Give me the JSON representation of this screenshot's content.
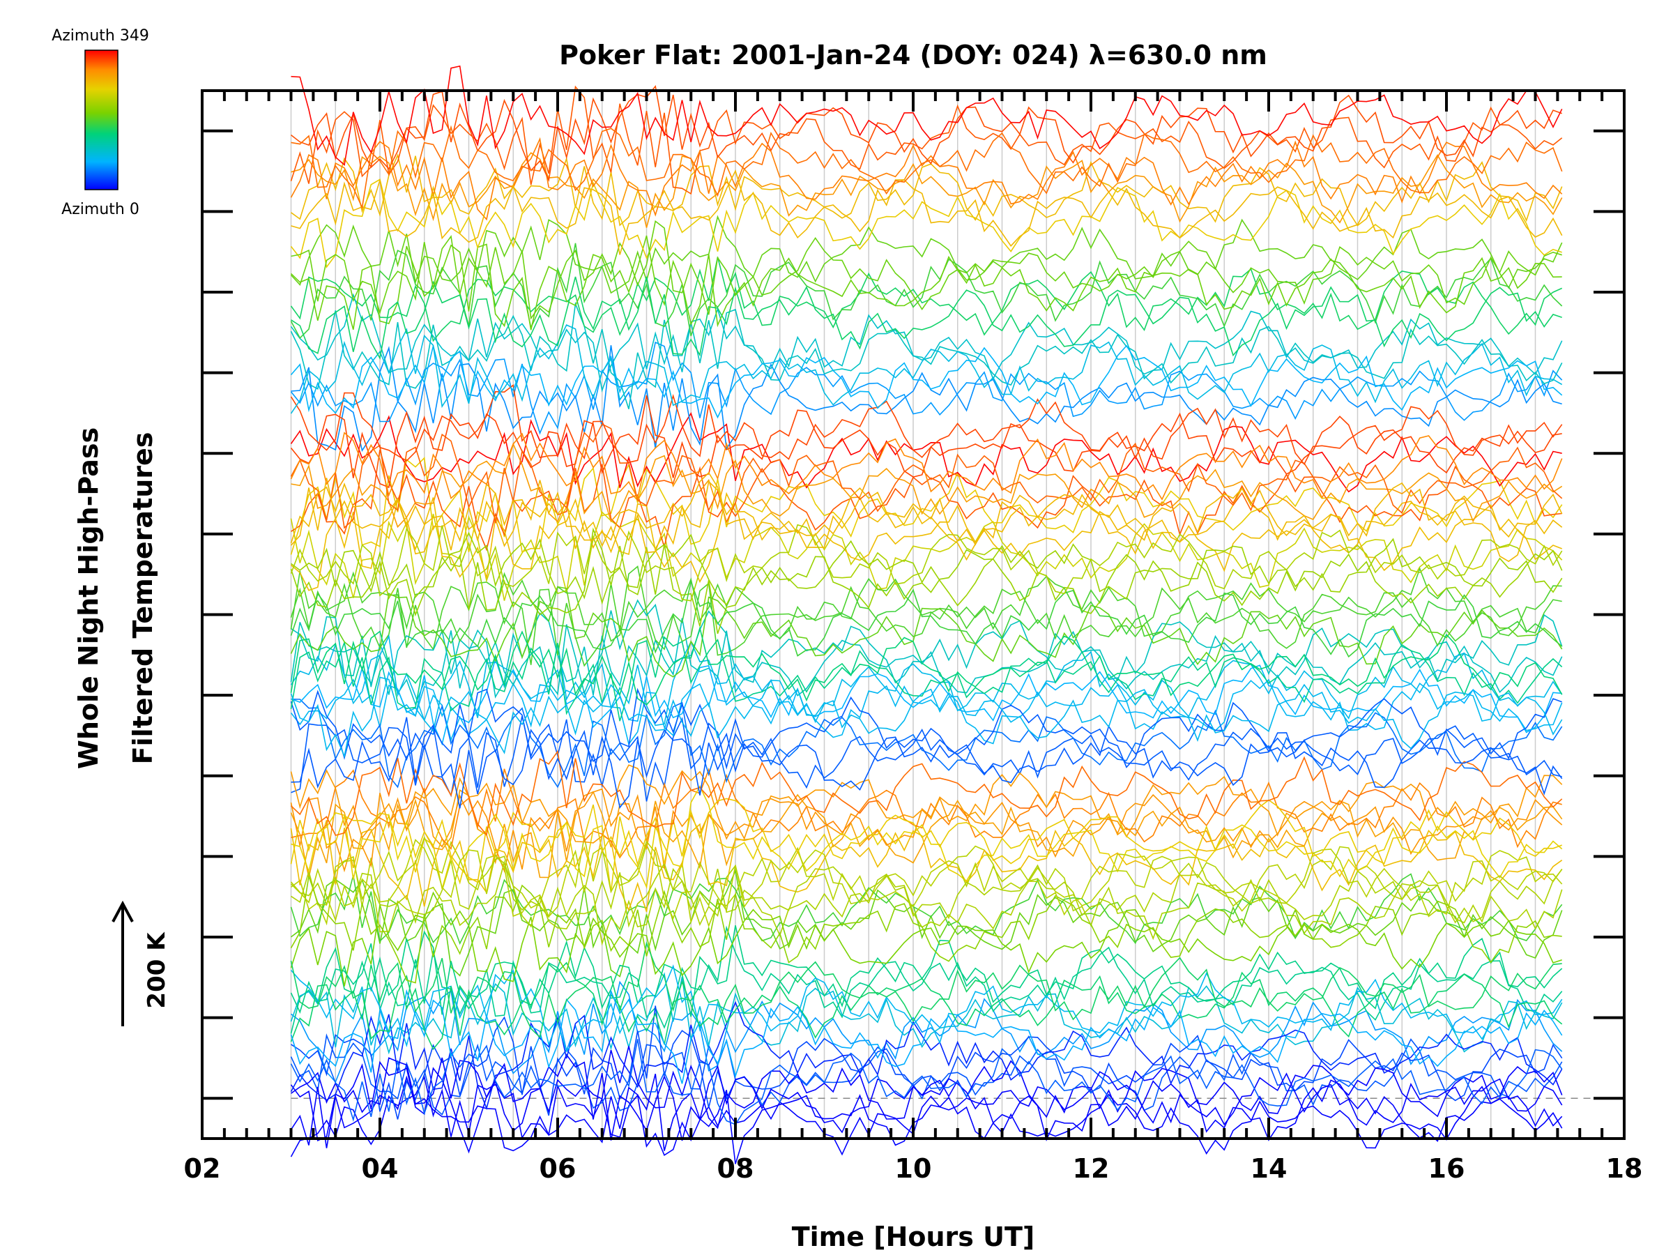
{
  "colorbar": {
    "top_label": "Azimuth 349",
    "bottom_label": "Azimuth 0",
    "colors": [
      "#0000ff",
      "#00b4ff",
      "#00d27a",
      "#7ad200",
      "#e6d200",
      "#ff8c00",
      "#ff0000"
    ]
  },
  "scale_indicator": {
    "label": "200 K"
  },
  "chart_data": {
    "type": "line",
    "title": "Poker Flat: 2001-Jan-24 (DOY: 024) λ=630.0 nm",
    "xlabel": "Time [Hours UT]",
    "ylabel_line1": "Whole Night High-Pass",
    "ylabel_line2": "Filtered Temperatures",
    "xlim": [
      2,
      18
    ],
    "x_ticks": [
      "02",
      "04",
      "06",
      "08",
      "10",
      "12",
      "14",
      "16",
      "18"
    ],
    "x_range_data": [
      3.0,
      17.3
    ],
    "sample_interval_hours": 0.1,
    "ylim_units": [
      -0.5,
      12.5
    ],
    "y_major_ticks": [
      0,
      1,
      2,
      3,
      4,
      5,
      6,
      7,
      8,
      9,
      10,
      11,
      12
    ],
    "grid": "vertical",
    "reference_line": {
      "y": 0,
      "style": "dashed"
    },
    "series_offsets": [
      -0.3,
      0.2,
      0.7,
      1.2,
      1.9,
      2.4,
      2.9,
      3.4,
      4.2,
      4.7,
      5.2,
      5.7,
      6.4,
      6.9,
      7.4,
      7.9,
      8.5,
      9.0,
      9.6,
      10.1,
      10.8,
      11.3,
      11.8
    ],
    "group_ends": [
      0,
      4,
      8,
      12,
      16,
      20,
      23
    ],
    "series_count": 84,
    "legend": "colorbar-top-left"
  }
}
